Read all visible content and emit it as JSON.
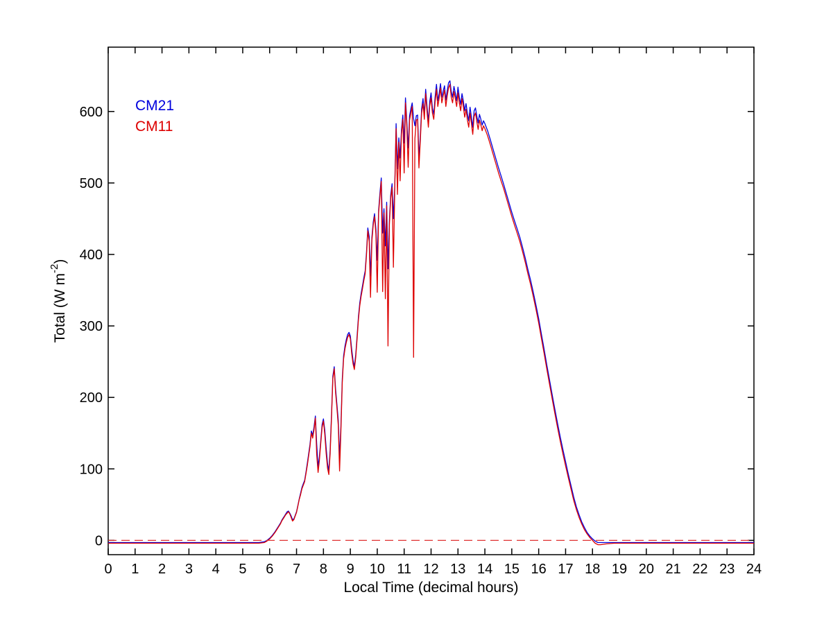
{
  "chart_data": {
    "type": "line",
    "title": "",
    "xlabel": "Local Time (decimal hours)",
    "ylabel": "Total (W m-2)",
    "ylabel_parts": {
      "prefix": "Total (W m",
      "superscript": "-2",
      "suffix": ")"
    },
    "xlim": [
      0,
      24
    ],
    "ylim": [
      -20,
      690
    ],
    "xticks": [
      0,
      1,
      2,
      3,
      4,
      5,
      6,
      7,
      8,
      9,
      10,
      11,
      12,
      13,
      14,
      15,
      16,
      17,
      18,
      19,
      20,
      21,
      22,
      23,
      24
    ],
    "yticks": [
      0,
      100,
      200,
      300,
      400,
      500,
      600
    ],
    "grid": false,
    "axis_color": "#000000",
    "background_color": "#ffffff",
    "legend": {
      "position": "top-left-inside",
      "entries": [
        {
          "label": "CM21",
          "color": "#0000dd"
        },
        {
          "label": "CM11",
          "color": "#dd0000"
        }
      ]
    },
    "ref_line": {
      "y": 0,
      "color": "#e03030",
      "style": "dashed"
    },
    "point_format": [
      "time_decimal_hours",
      "CM11",
      "CM21"
    ],
    "points": [
      [
        0,
        -4,
        -3
      ],
      [
        0.5,
        -4,
        -3
      ],
      [
        1,
        -4,
        -3
      ],
      [
        1.5,
        -4,
        -3
      ],
      [
        2,
        -4,
        -3
      ],
      [
        2.5,
        -4,
        -3
      ],
      [
        3,
        -4,
        -3
      ],
      [
        3.5,
        -4,
        -3
      ],
      [
        4,
        -4,
        -3
      ],
      [
        4.5,
        -4,
        -3
      ],
      [
        5,
        -4,
        -3
      ],
      [
        5.4,
        -4,
        -3
      ],
      [
        5.6,
        -4,
        -3
      ],
      [
        5.8,
        -3,
        -2
      ],
      [
        5.9,
        -1,
        0
      ],
      [
        6.0,
        2,
        3
      ],
      [
        6.1,
        6,
        7
      ],
      [
        6.2,
        11,
        12
      ],
      [
        6.3,
        17,
        18
      ],
      [
        6.4,
        23,
        24
      ],
      [
        6.45,
        27,
        28
      ],
      [
        6.5,
        30,
        31
      ],
      [
        6.55,
        33,
        34
      ],
      [
        6.6,
        36,
        37
      ],
      [
        6.65,
        38,
        40
      ],
      [
        6.7,
        40,
        41
      ],
      [
        6.75,
        37,
        38
      ],
      [
        6.8,
        32,
        34
      ],
      [
        6.85,
        27,
        29
      ],
      [
        6.9,
        29,
        30
      ],
      [
        6.95,
        34,
        35
      ],
      [
        7.0,
        39,
        40
      ],
      [
        7.05,
        48,
        49
      ],
      [
        7.1,
        57,
        58
      ],
      [
        7.15,
        64,
        66
      ],
      [
        7.2,
        72,
        74
      ],
      [
        7.25,
        77,
        79
      ],
      [
        7.3,
        82,
        84
      ],
      [
        7.35,
        93,
        95
      ],
      [
        7.4,
        105,
        108
      ],
      [
        7.45,
        118,
        121
      ],
      [
        7.5,
        131,
        134
      ],
      [
        7.55,
        150,
        153
      ],
      [
        7.6,
        143,
        147
      ],
      [
        7.65,
        155,
        159
      ],
      [
        7.7,
        171,
        174
      ],
      [
        7.75,
        120,
        135
      ],
      [
        7.8,
        95,
        103
      ],
      [
        7.85,
        112,
        117
      ],
      [
        7.9,
        136,
        140
      ],
      [
        7.95,
        158,
        162
      ],
      [
        8.0,
        167,
        170
      ],
      [
        8.05,
        148,
        154
      ],
      [
        8.1,
        122,
        130
      ],
      [
        8.15,
        101,
        108
      ],
      [
        8.2,
        92,
        97
      ],
      [
        8.25,
        121,
        127
      ],
      [
        8.3,
        172,
        177
      ],
      [
        8.35,
        226,
        230
      ],
      [
        8.4,
        240,
        243
      ],
      [
        8.45,
        207,
        212
      ],
      [
        8.5,
        186,
        191
      ],
      [
        8.55,
        161,
        168
      ],
      [
        8.6,
        97,
        115
      ],
      [
        8.65,
        152,
        160
      ],
      [
        8.7,
        221,
        226
      ],
      [
        8.75,
        254,
        258
      ],
      [
        8.8,
        268,
        272
      ],
      [
        8.85,
        277,
        281
      ],
      [
        8.9,
        284,
        288
      ],
      [
        8.95,
        288,
        291
      ],
      [
        9.0,
        282,
        286
      ],
      [
        9.05,
        261,
        267
      ],
      [
        9.1,
        247,
        252
      ],
      [
        9.15,
        239,
        243
      ],
      [
        9.2,
        256,
        260
      ],
      [
        9.25,
        281,
        285
      ],
      [
        9.3,
        309,
        313
      ],
      [
        9.35,
        328,
        332
      ],
      [
        9.4,
        341,
        345
      ],
      [
        9.45,
        352,
        356
      ],
      [
        9.5,
        363,
        367
      ],
      [
        9.55,
        373,
        377
      ],
      [
        9.6,
        399,
        403
      ],
      [
        9.65,
        433,
        437
      ],
      [
        9.7,
        418,
        425
      ],
      [
        9.75,
        340,
        370
      ],
      [
        9.8,
        419,
        424
      ],
      [
        9.85,
        441,
        445
      ],
      [
        9.9,
        453,
        457
      ],
      [
        9.95,
        428,
        435
      ],
      [
        10.0,
        347,
        392
      ],
      [
        10.05,
        458,
        462
      ],
      [
        10.1,
        481,
        486
      ],
      [
        10.15,
        502,
        507
      ],
      [
        10.2,
        348,
        430
      ],
      [
        10.25,
        458,
        464
      ],
      [
        10.3,
        338,
        412
      ],
      [
        10.35,
        468,
        473
      ],
      [
        10.4,
        272,
        380
      ],
      [
        10.45,
        441,
        447
      ],
      [
        10.5,
        478,
        483
      ],
      [
        10.55,
        494,
        499
      ],
      [
        10.6,
        382,
        450
      ],
      [
        10.65,
        488,
        494
      ],
      [
        10.7,
        576,
        583
      ],
      [
        10.75,
        484,
        520
      ],
      [
        10.8,
        557,
        563
      ],
      [
        10.85,
        503,
        535
      ],
      [
        10.9,
        568,
        574
      ],
      [
        10.95,
        589,
        595
      ],
      [
        11.0,
        514,
        556
      ],
      [
        11.05,
        612,
        619
      ],
      [
        11.1,
        578,
        585
      ],
      [
        11.15,
        522,
        549
      ],
      [
        11.2,
        588,
        594
      ],
      [
        11.25,
        598,
        604
      ],
      [
        11.3,
        607,
        612
      ],
      [
        11.35,
        256,
        590
      ],
      [
        11.4,
        562,
        580
      ],
      [
        11.45,
        588,
        594
      ],
      [
        11.5,
        589,
        595
      ],
      [
        11.55,
        521,
        535
      ],
      [
        11.6,
        559,
        566
      ],
      [
        11.65,
        598,
        604
      ],
      [
        11.7,
        611,
        618
      ],
      [
        11.75,
        589,
        596
      ],
      [
        11.8,
        625,
        631
      ],
      [
        11.85,
        599,
        607
      ],
      [
        11.9,
        578,
        586
      ],
      [
        11.95,
        608,
        614
      ],
      [
        12.0,
        619,
        626
      ],
      [
        12.05,
        598,
        605
      ],
      [
        12.1,
        589,
        596
      ],
      [
        12.15,
        613,
        620
      ],
      [
        12.2,
        631,
        638
      ],
      [
        12.25,
        607,
        615
      ],
      [
        12.3,
        618,
        625
      ],
      [
        12.35,
        633,
        639
      ],
      [
        12.4,
        612,
        620
      ],
      [
        12.45,
        622,
        629
      ],
      [
        12.5,
        630,
        636
      ],
      [
        12.55,
        607,
        616
      ],
      [
        12.6,
        622,
        629
      ],
      [
        12.65,
        633,
        640
      ],
      [
        12.7,
        638,
        643
      ],
      [
        12.75,
        620,
        628
      ],
      [
        12.8,
        612,
        620
      ],
      [
        12.85,
        628,
        635
      ],
      [
        12.9,
        618,
        626
      ],
      [
        12.95,
        607,
        615
      ],
      [
        13.0,
        626,
        634
      ],
      [
        13.05,
        612,
        620
      ],
      [
        13.1,
        601,
        610
      ],
      [
        13.15,
        618,
        625
      ],
      [
        13.2,
        607,
        615
      ],
      [
        13.25,
        592,
        601
      ],
      [
        13.3,
        603,
        611
      ],
      [
        13.35,
        588,
        597
      ],
      [
        13.4,
        578,
        587
      ],
      [
        13.45,
        598,
        606
      ],
      [
        13.5,
        583,
        592
      ],
      [
        13.55,
        568,
        578
      ],
      [
        13.6,
        593,
        601
      ],
      [
        13.65,
        598,
        605
      ],
      [
        13.7,
        586,
        594
      ],
      [
        13.75,
        575,
        584
      ],
      [
        13.8,
        588,
        596
      ],
      [
        13.85,
        581,
        589
      ],
      [
        13.9,
        573,
        581
      ],
      [
        13.95,
        580,
        587
      ],
      [
        14.0,
        576,
        583
      ],
      [
        14.1,
        566,
        573
      ],
      [
        14.2,
        554,
        561
      ],
      [
        14.3,
        541,
        548
      ],
      [
        14.4,
        528,
        535
      ],
      [
        14.5,
        515,
        522
      ],
      [
        14.6,
        503,
        510
      ],
      [
        14.7,
        492,
        498
      ],
      [
        14.8,
        479,
        485
      ],
      [
        14.9,
        466,
        472
      ],
      [
        15.0,
        453,
        459
      ],
      [
        15.1,
        441,
        447
      ],
      [
        15.2,
        430,
        436
      ],
      [
        15.3,
        418,
        424
      ],
      [
        15.4,
        404,
        410
      ],
      [
        15.5,
        389,
        395
      ],
      [
        15.6,
        373,
        379
      ],
      [
        15.7,
        358,
        364
      ],
      [
        15.8,
        341,
        347
      ],
      [
        15.9,
        323,
        329
      ],
      [
        16.0,
        304,
        310
      ],
      [
        16.1,
        283,
        289
      ],
      [
        16.2,
        262,
        268
      ],
      [
        16.3,
        240,
        246
      ],
      [
        16.4,
        219,
        225
      ],
      [
        16.5,
        198,
        204
      ],
      [
        16.6,
        178,
        184
      ],
      [
        16.7,
        158,
        164
      ],
      [
        16.8,
        139,
        145
      ],
      [
        16.9,
        121,
        127
      ],
      [
        17.0,
        104,
        110
      ],
      [
        17.1,
        88,
        93
      ],
      [
        17.2,
        72,
        77
      ],
      [
        17.3,
        56,
        61
      ],
      [
        17.4,
        43,
        47
      ],
      [
        17.5,
        32,
        36
      ],
      [
        17.6,
        23,
        26
      ],
      [
        17.7,
        15,
        18
      ],
      [
        17.8,
        9,
        11
      ],
      [
        17.9,
        4,
        6
      ],
      [
        18.0,
        0,
        2
      ],
      [
        18.1,
        -4,
        -1
      ],
      [
        18.2,
        -6,
        -3
      ],
      [
        18.3,
        -6,
        -3
      ],
      [
        18.5,
        -5,
        -3
      ],
      [
        18.8,
        -4,
        -3
      ],
      [
        19,
        -4,
        -3
      ],
      [
        19.5,
        -4,
        -3
      ],
      [
        20,
        -4,
        -3
      ],
      [
        20.5,
        -4,
        -3
      ],
      [
        21,
        -4,
        -3
      ],
      [
        21.5,
        -4,
        -3
      ],
      [
        22,
        -4,
        -3
      ],
      [
        22.5,
        -4,
        -3
      ],
      [
        23,
        -4,
        -3
      ],
      [
        23.5,
        -4,
        -3
      ],
      [
        24,
        -4,
        -3
      ]
    ]
  }
}
